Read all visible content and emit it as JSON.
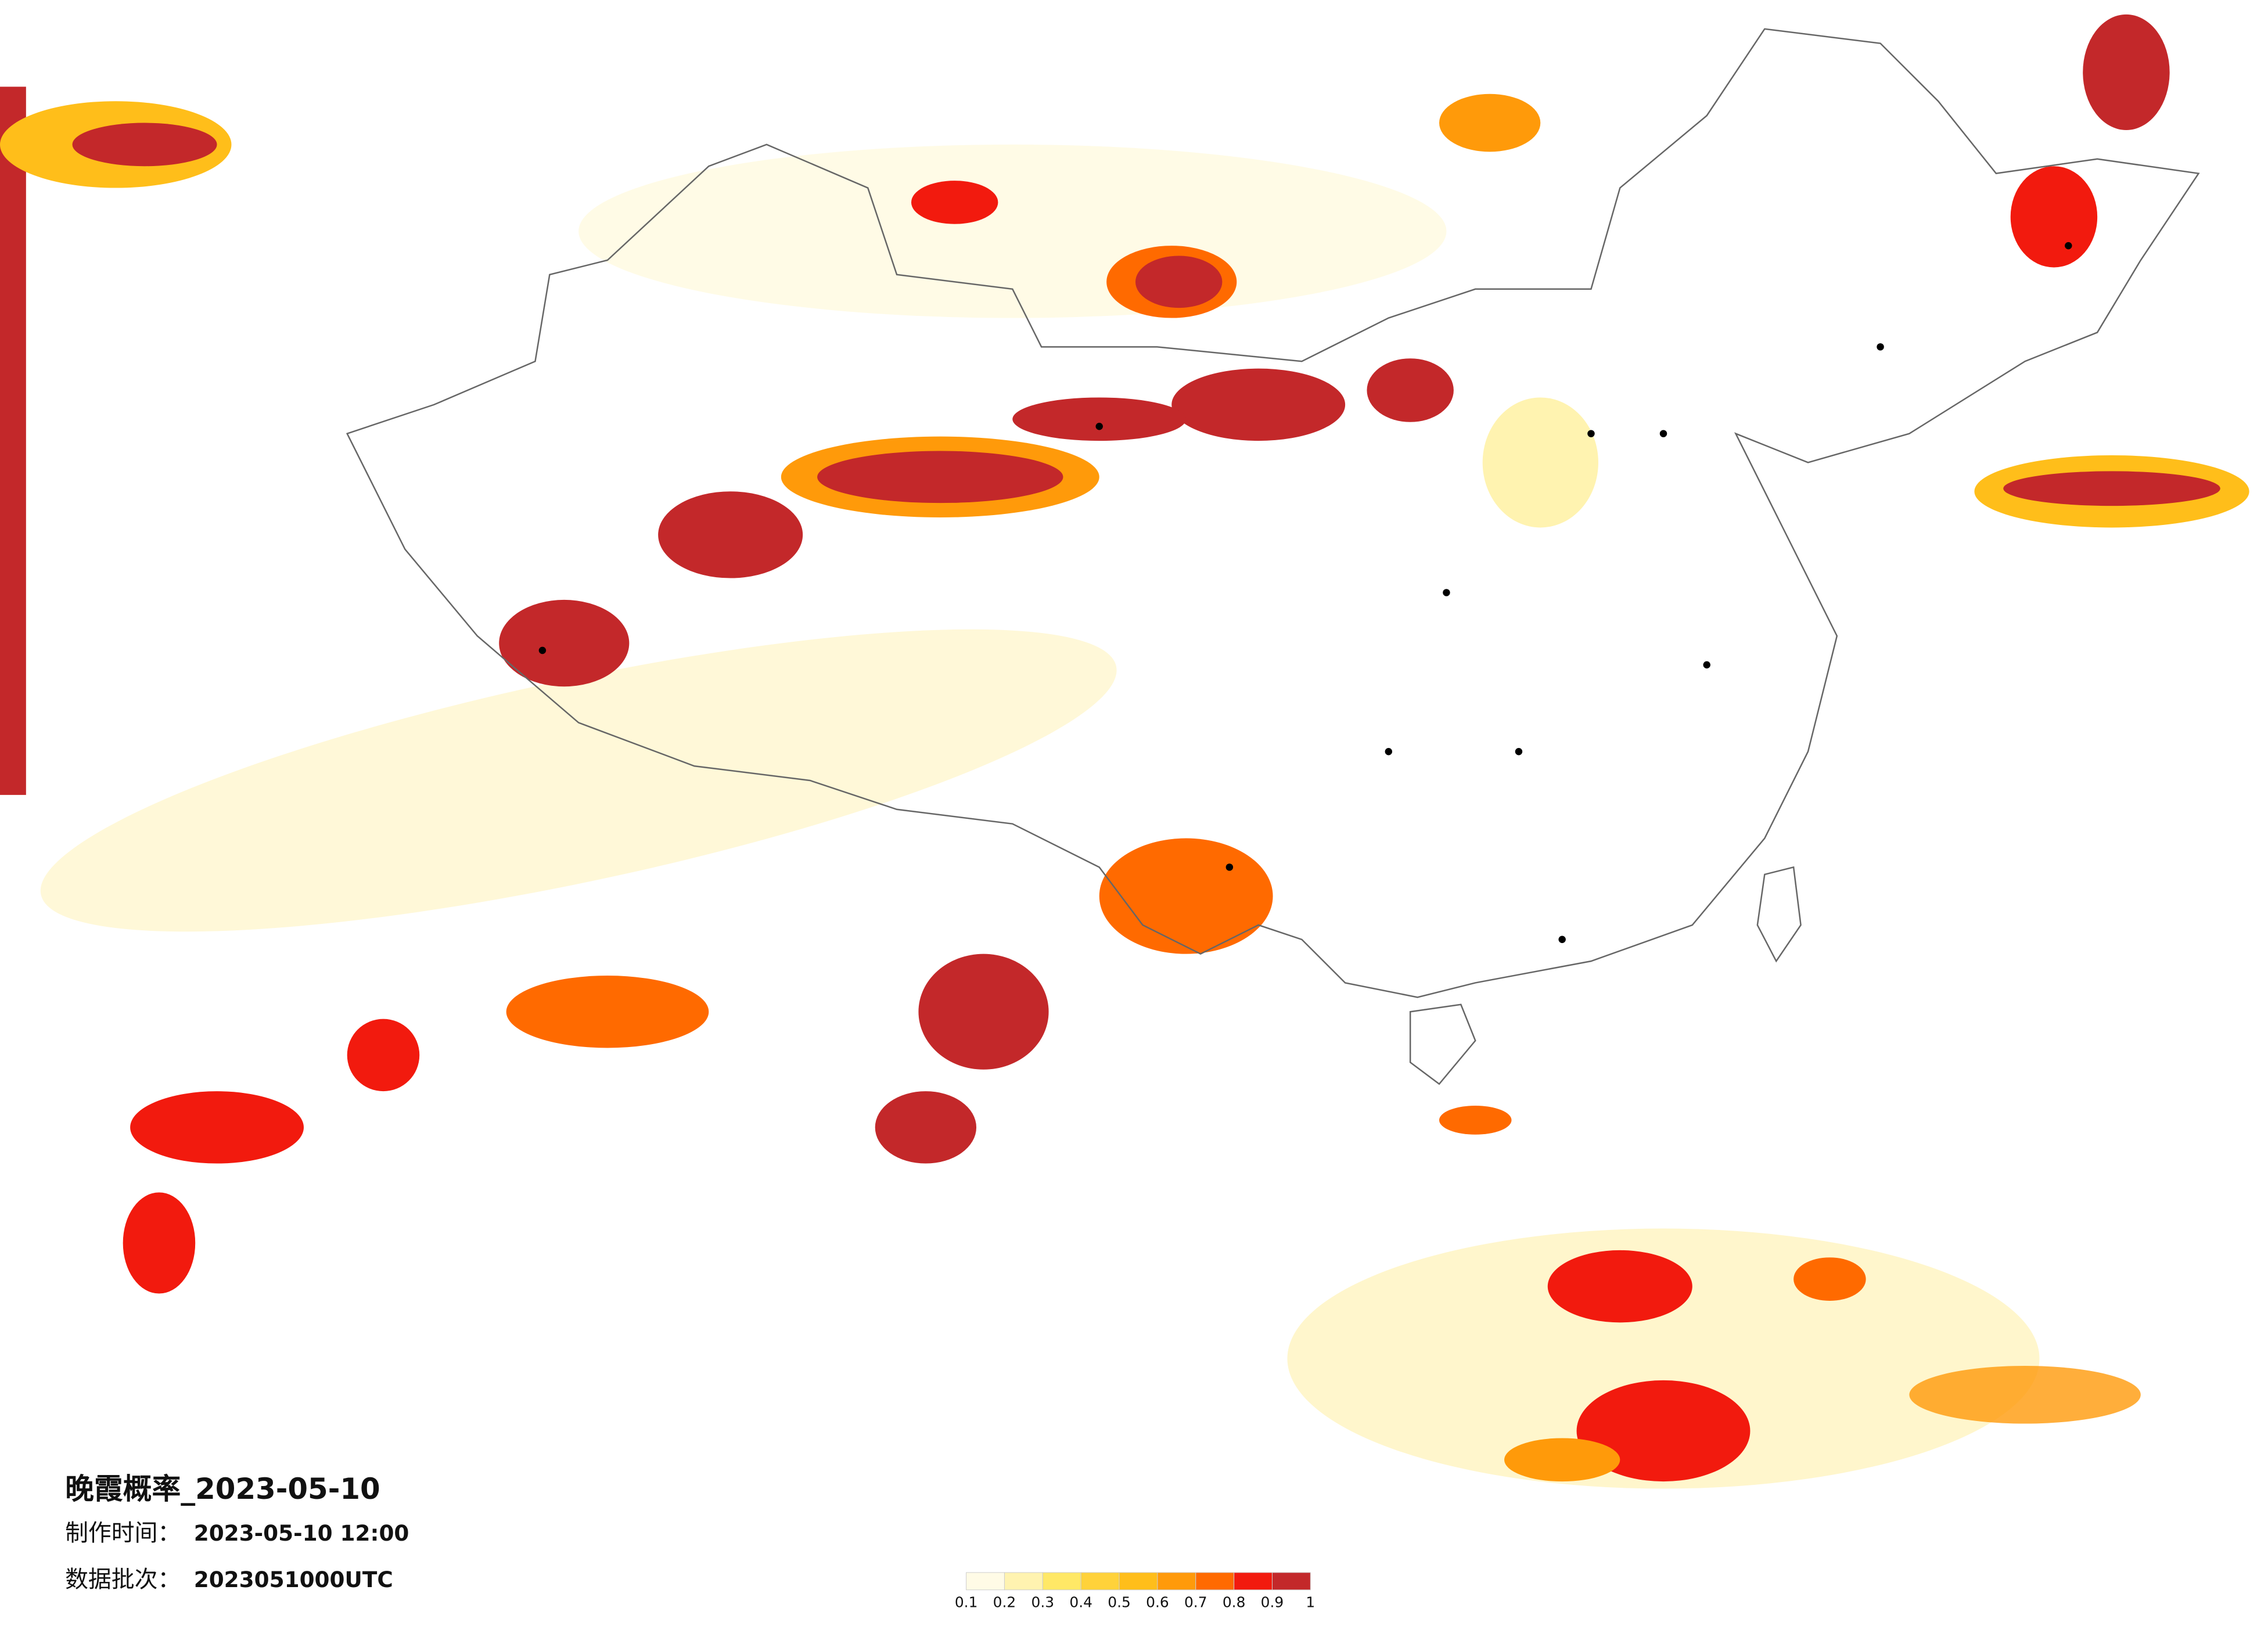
{
  "header": {
    "title": "晚霞概率_2023-05-10",
    "made_time_label": "制作时间：",
    "made_time": "2023-05-10 12:00",
    "batch_label": "数据批次：",
    "batch": "2023051000UTC"
  },
  "legend": {
    "ticks": [
      0.1,
      0.2,
      0.3,
      0.4,
      0.5,
      0.6,
      0.7,
      0.8,
      0.9,
      1
    ],
    "colors": [
      "#fffbe6",
      "#fff3b0",
      "#ffe866",
      "#ffd23a",
      "#ffbe1a",
      "#ff9a0a",
      "#ff6a00",
      "#f21a0e",
      "#c3282a"
    ]
  }
}
